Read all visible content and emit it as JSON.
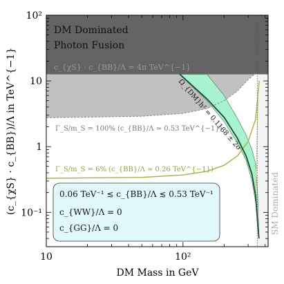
{
  "chart_data": {
    "type": "line",
    "title": "",
    "xlabel": "DM Mass in GeV",
    "ylabel": "(c_{χS} · c_{BB})/Λ  in TeV^{−1}",
    "x_scale": "log",
    "y_scale": "log",
    "xlim": [
      10,
      420
    ],
    "ylim": [
      0.03,
      100
    ],
    "x_ticks": [
      {
        "value": 10,
        "label": "10"
      },
      {
        "value": 100,
        "label": "10²"
      }
    ],
    "y_ticks": [
      {
        "value": 100,
        "label": "10²"
      },
      {
        "value": 10,
        "label": "10"
      },
      {
        "value": 1,
        "label": "1"
      },
      {
        "value": 0.1,
        "label": "10⁻¹"
      }
    ],
    "regions": [
      {
        "name": "dm-dominated-photon-fusion",
        "lines": [
          "DM Dominated",
          "Photon Fusion"
        ],
        "color": "#636363",
        "y_from": 12.6,
        "y_to": 100
      },
      {
        "name": "perturbativity-band",
        "label": "c_{χS} · c_{BB}/Λ = 4π TeV^{−1}",
        "color": "#c1c1c1"
      },
      {
        "name": "sm-dominated",
        "label": "SM Dominated",
        "color": "#f3f3f3",
        "x_from": 350,
        "x_to": 420
      }
    ],
    "series": [
      {
        "name": "relic-band",
        "label": "Ω_{DM}h² = 0.1188 ± 2σ",
        "color": "#a7f2cf",
        "lower_edge": [
          [
            94,
            12.6
          ],
          [
            150,
            5.0
          ],
          [
            200,
            2.4
          ],
          [
            250,
            1.15
          ],
          [
            290,
            0.62
          ],
          [
            320,
            0.3
          ],
          [
            345,
            0.12
          ],
          [
            360,
            0.04
          ]
        ],
        "upper_edge": [
          [
            150,
            12.6
          ],
          [
            200,
            6.0
          ],
          [
            250,
            2.7
          ],
          [
            290,
            1.5
          ],
          [
            320,
            0.9
          ],
          [
            340,
            0.55
          ],
          [
            352,
            0.2
          ],
          [
            360,
            0.04
          ]
        ]
      },
      {
        "name": "relic-central",
        "color": "#1f4a2e",
        "points": [
          [
            95,
            12.6
          ],
          [
            150,
            5.3
          ],
          [
            200,
            2.8
          ],
          [
            250,
            1.35
          ],
          [
            290,
            0.72
          ],
          [
            320,
            0.38
          ],
          [
            340,
            0.18
          ],
          [
            352,
            0.07
          ],
          [
            360,
            0.04
          ]
        ]
      },
      {
        "name": "width-100",
        "label": "Γ_S/m_S = 100% (c_{BB}/Λ ≃ 0.53 TeV^{−1})",
        "color": "#8a8a8a",
        "style": "dashed",
        "points": [
          [
            10,
            2.75
          ],
          [
            50,
            2.9
          ],
          [
            100,
            3.2
          ],
          [
            150,
            3.8
          ],
          [
            200,
            5.0
          ],
          [
            250,
            7.0
          ],
          [
            300,
            10.5
          ],
          [
            340,
            13
          ]
        ]
      },
      {
        "name": "width-6",
        "label": "Γ_S/m_S = 6% (c_{BB}/Λ ≃ 0.26 TeV^{−1})",
        "color": "#a8b23a",
        "points": [
          [
            10,
            0.33
          ],
          [
            50,
            0.34
          ],
          [
            100,
            0.37
          ],
          [
            150,
            0.42
          ],
          [
            200,
            0.52
          ],
          [
            250,
            0.72
          ],
          [
            300,
            1.2
          ],
          [
            340,
            2.6
          ],
          [
            362,
            10
          ]
        ]
      },
      {
        "name": "width-faint",
        "color": "#c7cd85",
        "points": [
          [
            340,
            0.15
          ],
          [
            345,
            0.5
          ],
          [
            350,
            2.0
          ],
          [
            355,
            6.0
          ]
        ]
      }
    ],
    "legend_box": {
      "lines": [
        "0.06 TeV⁻¹ ≲ c_{BB}/Λ ≲ 0.53 TeV⁻¹",
        "c_{WW}/Λ = 0",
        "c_{GG}/Λ = 0"
      ],
      "color": "#e2f9fb",
      "position": "bottom-left"
    },
    "grid": false
  }
}
